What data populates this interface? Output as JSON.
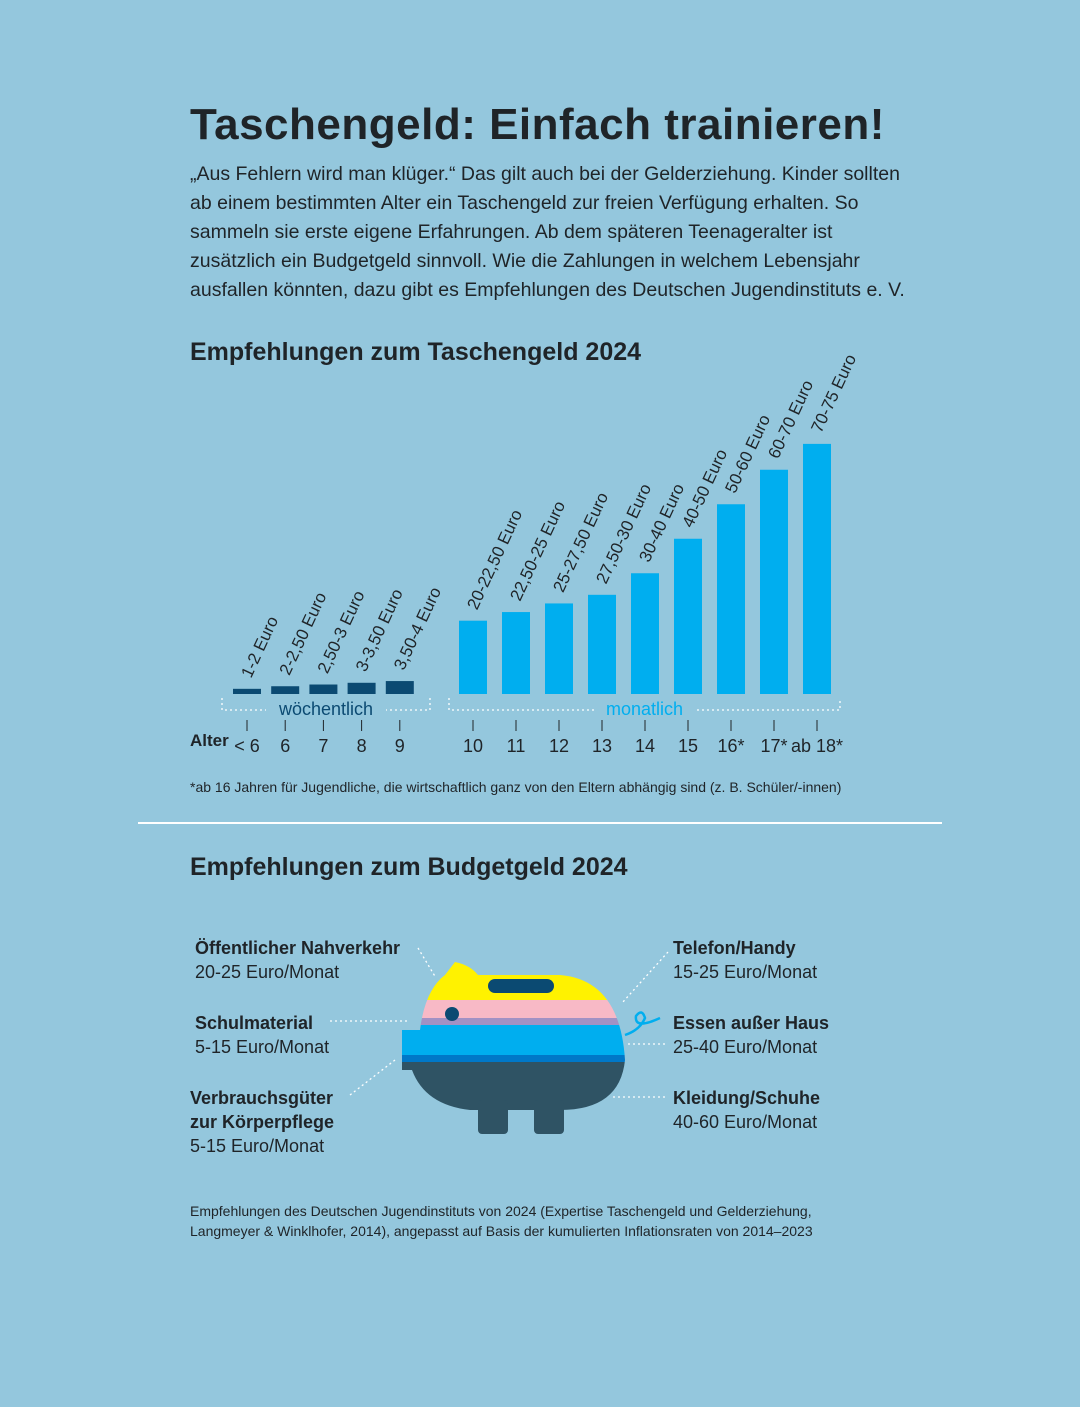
{
  "title": "Taschengeld: Einfach trainieren!",
  "intro": "„Aus Fehlern wird man klüger.“ Das gilt auch bei der Gelderziehung. Kinder sollten ab einem bestimmten Alter ein Taschengeld zur freien Verfügung erhalten. So sammeln sie erste eigene Erfahrungen. Ab dem späteren Teenageralter ist zusätzlich ein Budgetgeld sinnvoll. Wie die Zahlungen in welchem Lebensjahr ausfallen könnten, dazu gibt es Empfehlungen des Deutschen Jugendinstituts e. V.",
  "chart_data": {
    "type": "bar",
    "title": "Empfehlungen zum Taschengeld 2024",
    "xlabel": "Alter",
    "colors": {
      "wöchentlich": "#0b4a72",
      "monatlich": "#00aeef"
    },
    "groups": [
      {
        "name": "wöchentlich",
        "categories": [
          "< 6",
          "6",
          "7",
          "8",
          "9"
        ],
        "ranges": [
          [
            1,
            2
          ],
          [
            2,
            2.5
          ],
          [
            2.5,
            3
          ],
          [
            3,
            3.5
          ],
          [
            3.5,
            4
          ]
        ],
        "labels": [
          "1-2 Euro",
          "2-2,50 Euro",
          "2,50-3 Euro",
          "3-3,50 Euro",
          "3,50-4 Euro"
        ]
      },
      {
        "name": "monatlich",
        "categories": [
          "10",
          "11",
          "12",
          "13",
          "14",
          "15",
          "16*",
          "17*",
          "ab 18*"
        ],
        "ranges": [
          [
            20,
            22.5
          ],
          [
            22.5,
            25
          ],
          [
            25,
            27.5
          ],
          [
            27.5,
            30
          ],
          [
            30,
            40
          ],
          [
            40,
            50
          ],
          [
            50,
            60
          ],
          [
            60,
            70
          ],
          [
            70,
            75
          ]
        ],
        "labels": [
          "20-22,50 Euro",
          "22,50-25 Euro",
          "25-27,50 Euro",
          "27,50-30 Euro",
          "30-40 Euro",
          "40-50 Euro",
          "50-60 Euro",
          "60-70 Euro",
          "70-75 Euro"
        ]
      }
    ],
    "footnote": "*ab 16 Jahren für Jugendliche, die wirtschaftlich ganz von den Eltern abhängig sind (z. B. Schüler/-innen)"
  },
  "budget": {
    "title": "Empfehlungen zum Budgetgeld 2024",
    "items": [
      {
        "name": "Öffentlicher Nahverkehr",
        "value": "20-25 Euro/Monat"
      },
      {
        "name": "Schulmaterial",
        "value": "5-15 Euro/Monat"
      },
      {
        "name": "Verbrauchsgüter",
        "name2": "zur Körperpflege",
        "value": "5-15 Euro/Monat"
      },
      {
        "name": "Telefon/Handy",
        "value": "15-25 Euro/Monat"
      },
      {
        "name": "Essen außer Haus",
        "value": "25-40 Euro/Monat"
      },
      {
        "name": "Kleidung/Schuhe",
        "value": "40-60 Euro/Monat"
      }
    ],
    "icon": "piggy-bank-icon"
  },
  "source_line1": "Empfehlungen des Deutschen Jugendinstituts von 2024 (Expertise Taschengeld und Gelderziehung,",
  "source_line2": "Langmeyer & Winklhofer, 2014), angepasst auf Basis der kumulierten Inflationsraten von 2014–2023"
}
